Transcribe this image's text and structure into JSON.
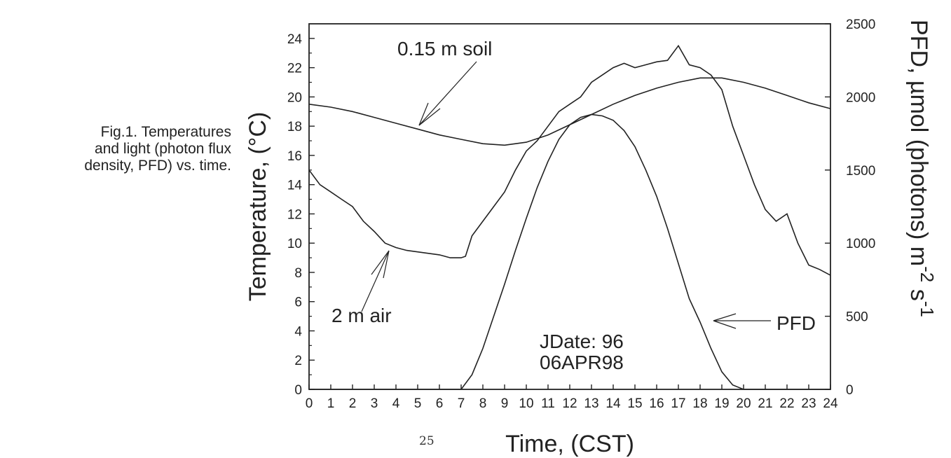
{
  "caption": {
    "lines": [
      "Fig.1. Temperatures",
      "and light (photon flux",
      "density, PFD) vs. time."
    ]
  },
  "page_number": "25",
  "chart_data": {
    "type": "line",
    "xlabel": "Time, (CST)",
    "ylabel": "Temperature, (°C)",
    "y2label": "PFD, µmol (photons) m",
    "y2label_sup1": "-2",
    "y2label_mid": " s",
    "y2label_sup2": "-1",
    "xlim": [
      0,
      24
    ],
    "ylim": [
      0,
      25
    ],
    "y2lim": [
      0,
      2500
    ],
    "x_ticks": [
      "0",
      "1",
      "2",
      "3",
      "4",
      "5",
      "6",
      "7",
      "8",
      "9",
      "10",
      "11",
      "12",
      "13",
      "14",
      "15",
      "16",
      "17",
      "18",
      "19",
      "20",
      "21",
      "22",
      "23",
      "24"
    ],
    "y_ticks": [
      "0",
      "2",
      "4",
      "6",
      "8",
      "10",
      "12",
      "14",
      "16",
      "18",
      "20",
      "22",
      "24"
    ],
    "y2_ticks": [
      "0",
      "500",
      "1000",
      "1500",
      "2000",
      "2500"
    ],
    "grid": false,
    "annotations": {
      "soil": "0.15 m soil",
      "air": "2 m air",
      "pfd": "PFD",
      "jdate": "JDate: 96",
      "date": "06APR98"
    },
    "series": [
      {
        "name": "0.15 m soil",
        "axis": "left",
        "x": [
          0,
          1,
          2,
          3,
          4,
          5,
          6,
          7,
          8,
          9,
          10,
          11,
          12,
          13,
          14,
          15,
          16,
          17,
          18,
          19,
          20,
          21,
          22,
          23,
          24
        ],
        "y": [
          19.5,
          19.3,
          19.0,
          18.6,
          18.2,
          17.8,
          17.4,
          17.1,
          16.8,
          16.7,
          16.9,
          17.4,
          18.1,
          18.8,
          19.5,
          20.1,
          20.6,
          21.0,
          21.3,
          21.3,
          21.0,
          20.6,
          20.1,
          19.6,
          19.2
        ]
      },
      {
        "name": "2 m air",
        "axis": "left",
        "x": [
          0,
          0.5,
          1,
          1.5,
          2,
          2.5,
          3,
          3.5,
          4,
          4.5,
          5,
          5.5,
          6,
          6.5,
          7,
          7.2,
          7.5,
          8,
          8.5,
          9,
          9.5,
          10,
          10.5,
          11,
          11.5,
          12,
          12.5,
          13,
          13.5,
          14,
          14.5,
          15,
          15.5,
          16,
          16.5,
          17,
          17.5,
          18,
          18.5,
          19,
          19.5,
          20,
          20.5,
          21,
          21.5,
          22,
          22.5,
          23,
          23.5,
          24
        ],
        "y": [
          15.0,
          14.0,
          13.5,
          13.0,
          12.5,
          11.5,
          10.8,
          10.0,
          9.7,
          9.5,
          9.4,
          9.3,
          9.2,
          9.0,
          9.0,
          9.1,
          10.5,
          11.5,
          12.5,
          13.5,
          15.0,
          16.3,
          17.0,
          18.0,
          19.0,
          19.5,
          20.0,
          21.0,
          21.5,
          22.0,
          22.3,
          22.0,
          22.2,
          22.4,
          22.5,
          23.5,
          22.2,
          22.0,
          21.5,
          20.5,
          18.0,
          16.0,
          14.0,
          12.3,
          11.5,
          12.0,
          10.0,
          8.5,
          8.2,
          7.8
        ]
      },
      {
        "name": "PFD",
        "axis": "right",
        "x": [
          0,
          7,
          7.5,
          8,
          8.5,
          9,
          9.5,
          10,
          10.5,
          11,
          11.5,
          12,
          12.5,
          13,
          13.5,
          14,
          14.5,
          15,
          15.5,
          16,
          16.5,
          17,
          17.5,
          18,
          18.5,
          19,
          19.5,
          20,
          24
        ],
        "y": [
          0,
          0,
          100,
          280,
          500,
          720,
          950,
          1170,
          1380,
          1560,
          1710,
          1810,
          1860,
          1880,
          1870,
          1840,
          1770,
          1660,
          1500,
          1320,
          1100,
          860,
          620,
          460,
          280,
          120,
          30,
          0,
          0
        ]
      }
    ]
  }
}
